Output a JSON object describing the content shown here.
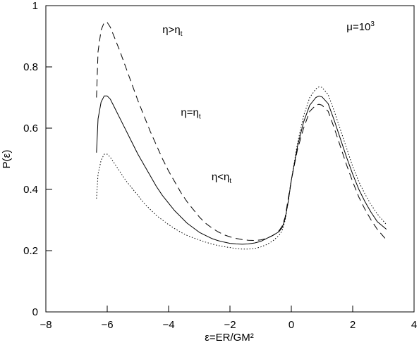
{
  "chart_data": {
    "type": "line",
    "title": "",
    "xlabel": "ε=ER/GM²",
    "ylabel": "P(ε)",
    "xlim": [
      -8,
      4
    ],
    "ylim": [
      0,
      1
    ],
    "xticks": [
      -8,
      -6,
      -4,
      -2,
      0,
      2,
      4
    ],
    "yticks": [
      0,
      0.2,
      0.4,
      0.6,
      0.8,
      1
    ],
    "xtick_labels": [
      "−8",
      "−6",
      "−4",
      "−2",
      "0",
      "2",
      "4"
    ],
    "ytick_labels": [
      "0",
      "0.2",
      "0.4",
      "0.6",
      "0.8",
      "1"
    ],
    "grid": false,
    "legend": "none",
    "series": [
      {
        "style": "dashed",
        "x": [
          -6.35,
          -6.3,
          -6.2,
          -6.1,
          -6.0,
          -5.9,
          -5.8,
          -5.6,
          -5.4,
          -5.2,
          -5.0,
          -4.8,
          -4.6,
          -4.4,
          -4.2,
          -4.0,
          -3.8,
          -3.6,
          -3.4,
          -3.2,
          -3.0,
          -2.8,
          -2.6,
          -2.4,
          -2.2,
          -2.0,
          -1.8,
          -1.6,
          -1.4,
          -1.2,
          -1.0,
          -0.8,
          -0.6,
          -0.4,
          -0.3,
          -0.2,
          -0.1,
          0.0,
          0.2,
          0.4,
          0.6,
          0.8,
          0.9,
          1.0,
          1.2,
          1.4,
          1.6,
          1.8,
          2.0,
          2.2,
          2.4,
          2.6,
          2.8,
          3.1
        ],
        "y": [
          0.7,
          0.85,
          0.92,
          0.945,
          0.945,
          0.93,
          0.905,
          0.855,
          0.8,
          0.745,
          0.69,
          0.64,
          0.59,
          0.545,
          0.5,
          0.46,
          0.425,
          0.39,
          0.36,
          0.335,
          0.31,
          0.29,
          0.275,
          0.262,
          0.252,
          0.245,
          0.24,
          0.236,
          0.234,
          0.233,
          0.235,
          0.24,
          0.25,
          0.265,
          0.28,
          0.31,
          0.37,
          0.43,
          0.53,
          0.6,
          0.655,
          0.675,
          0.678,
          0.675,
          0.655,
          0.6,
          0.54,
          0.48,
          0.425,
          0.375,
          0.335,
          0.3,
          0.27,
          0.235
        ]
      },
      {
        "style": "solid",
        "x": [
          -6.35,
          -6.3,
          -6.2,
          -6.1,
          -6.0,
          -5.9,
          -5.8,
          -5.6,
          -5.4,
          -5.2,
          -5.0,
          -4.8,
          -4.6,
          -4.4,
          -4.2,
          -4.0,
          -3.8,
          -3.6,
          -3.4,
          -3.2,
          -3.0,
          -2.8,
          -2.6,
          -2.4,
          -2.2,
          -2.0,
          -1.8,
          -1.6,
          -1.4,
          -1.2,
          -1.0,
          -0.8,
          -0.6,
          -0.4,
          -0.3,
          -0.2,
          -0.1,
          0.0,
          0.2,
          0.4,
          0.6,
          0.8,
          0.9,
          1.0,
          1.2,
          1.4,
          1.6,
          1.8,
          2.0,
          2.2,
          2.4,
          2.6,
          2.8,
          3.1
        ],
        "y": [
          0.52,
          0.63,
          0.685,
          0.705,
          0.705,
          0.695,
          0.675,
          0.635,
          0.595,
          0.555,
          0.515,
          0.48,
          0.445,
          0.41,
          0.38,
          0.355,
          0.33,
          0.31,
          0.29,
          0.275,
          0.26,
          0.25,
          0.24,
          0.233,
          0.228,
          0.224,
          0.222,
          0.221,
          0.222,
          0.225,
          0.23,
          0.24,
          0.25,
          0.262,
          0.275,
          0.305,
          0.36,
          0.43,
          0.54,
          0.62,
          0.675,
          0.7,
          0.705,
          0.702,
          0.68,
          0.625,
          0.565,
          0.505,
          0.45,
          0.4,
          0.36,
          0.325,
          0.295,
          0.27
        ]
      },
      {
        "style": "dotted",
        "x": [
          -6.35,
          -6.3,
          -6.2,
          -6.1,
          -6.0,
          -5.9,
          -5.8,
          -5.6,
          -5.4,
          -5.2,
          -5.0,
          -4.8,
          -4.6,
          -4.4,
          -4.2,
          -4.0,
          -3.8,
          -3.6,
          -3.4,
          -3.2,
          -3.0,
          -2.8,
          -2.6,
          -2.4,
          -2.2,
          -2.0,
          -1.8,
          -1.6,
          -1.4,
          -1.2,
          -1.0,
          -0.8,
          -0.6,
          -0.4,
          -0.3,
          -0.2,
          -0.1,
          0.0,
          0.2,
          0.4,
          0.6,
          0.8,
          0.9,
          1.0,
          1.2,
          1.4,
          1.6,
          1.8,
          2.0,
          2.2,
          2.4,
          2.6,
          2.8,
          3.1
        ],
        "y": [
          0.37,
          0.45,
          0.495,
          0.515,
          0.515,
          0.505,
          0.49,
          0.46,
          0.43,
          0.405,
          0.38,
          0.355,
          0.335,
          0.315,
          0.3,
          0.285,
          0.272,
          0.26,
          0.25,
          0.242,
          0.235,
          0.228,
          0.222,
          0.217,
          0.213,
          0.21,
          0.207,
          0.205,
          0.205,
          0.207,
          0.212,
          0.22,
          0.232,
          0.25,
          0.265,
          0.3,
          0.36,
          0.43,
          0.55,
          0.64,
          0.7,
          0.728,
          0.735,
          0.733,
          0.71,
          0.655,
          0.595,
          0.535,
          0.475,
          0.425,
          0.385,
          0.35,
          0.32,
          0.285
        ]
      }
    ],
    "annotations": [
      {
        "id": "eta-greater",
        "base": "η>η",
        "sub": "t",
        "x": -4.2,
        "y": 0.91
      },
      {
        "id": "eta-equal",
        "base": "η=η",
        "sub": "t",
        "x": -3.6,
        "y": 0.64
      },
      {
        "id": "eta-less",
        "base": "η<η",
        "sub": "t",
        "x": -2.6,
        "y": 0.43
      },
      {
        "id": "mu-value",
        "base": "μ=10",
        "sup": "3",
        "x": 1.8,
        "y": 0.92
      }
    ]
  }
}
